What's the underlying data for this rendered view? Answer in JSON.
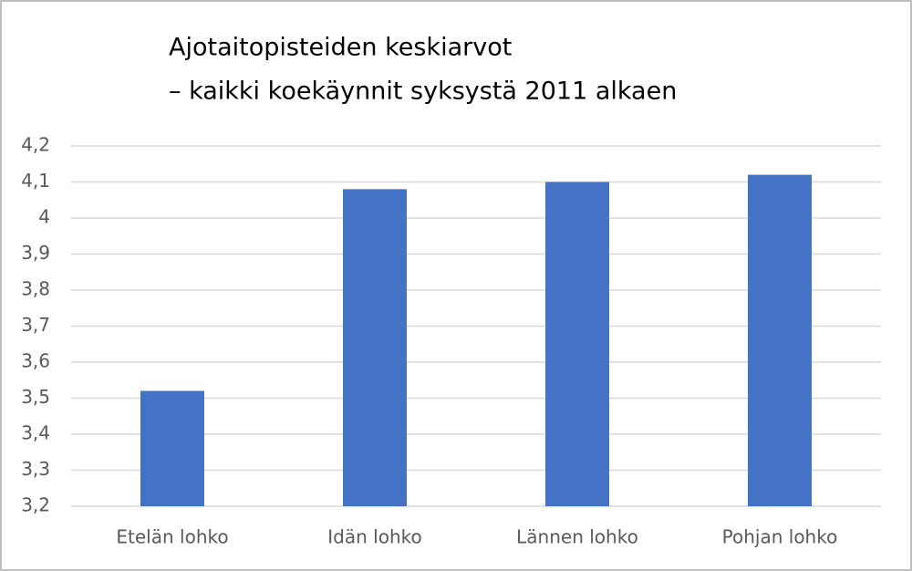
{
  "chart_data": {
    "type": "bar",
    "title": "Ajotaitopisteiden keskiarvot",
    "subtitle": "– kaikki koekäynnit syksystä 2011 alkaen",
    "categories": [
      "Etelän lohko",
      "Idän lohko",
      "Lännen lohko",
      "Pohjan lohko"
    ],
    "values": [
      3.52,
      4.08,
      4.1,
      4.12
    ],
    "color": "#4472c4",
    "ylim": [
      3.2,
      4.2
    ],
    "yticks": [
      {
        "value": 3.2,
        "label": "3,2"
      },
      {
        "value": 3.3,
        "label": "3,3"
      },
      {
        "value": 3.4,
        "label": "3,4"
      },
      {
        "value": 3.5,
        "label": "3,5"
      },
      {
        "value": 3.6,
        "label": "3,6"
      },
      {
        "value": 3.7,
        "label": "3,7"
      },
      {
        "value": 3.8,
        "label": "3,8"
      },
      {
        "value": 3.9,
        "label": "3,9"
      },
      4,
      {
        "value": 4.1,
        "label": "4,1"
      },
      {
        "value": 4.2,
        "label": "4,2"
      }
    ],
    "grid": true
  }
}
